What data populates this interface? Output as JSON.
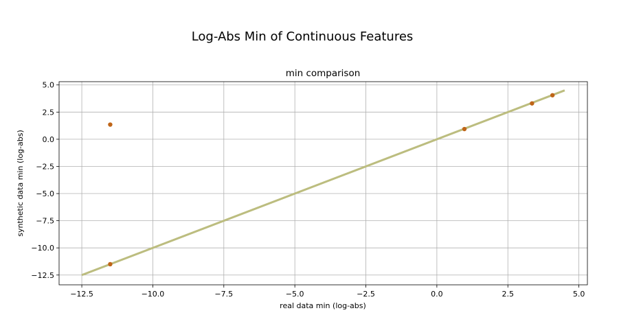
{
  "figure": {
    "suptitle": "Log-Abs Min of Continuous Features"
  },
  "chart_data": {
    "type": "scatter",
    "title": "min comparison",
    "xlabel": "real data min (log-abs)",
    "ylabel": "synthetic data min (log-abs)",
    "xlim": [
      -13.3,
      5.3
    ],
    "ylim": [
      -13.4,
      5.3
    ],
    "grid": true,
    "xticks": [
      -12.5,
      -10.0,
      -7.5,
      -5.0,
      -2.5,
      0.0,
      2.5,
      5.0
    ],
    "xtick_labels": [
      "−12.5",
      "−10.0",
      "−7.5",
      "−5.0",
      "−2.5",
      "0.0",
      "2.5",
      "5.0"
    ],
    "yticks": [
      -12.5,
      -10.0,
      -7.5,
      -5.0,
      -2.5,
      0.0,
      2.5,
      5.0
    ],
    "ytick_labels": [
      "−12.5",
      "−10.0",
      "−7.5",
      "−5.0",
      "−2.5",
      "0.0",
      "2.5",
      "5.0"
    ],
    "reference_line": {
      "x": [
        -12.5,
        4.5
      ],
      "y": [
        -12.5,
        4.5
      ],
      "color": "#bcbd7f"
    },
    "points": {
      "color": "#bf6518",
      "x": [
        -11.5,
        -11.5,
        0.97,
        3.35,
        4.07
      ],
      "y": [
        1.35,
        -11.5,
        0.94,
        3.3,
        4.05
      ]
    }
  }
}
